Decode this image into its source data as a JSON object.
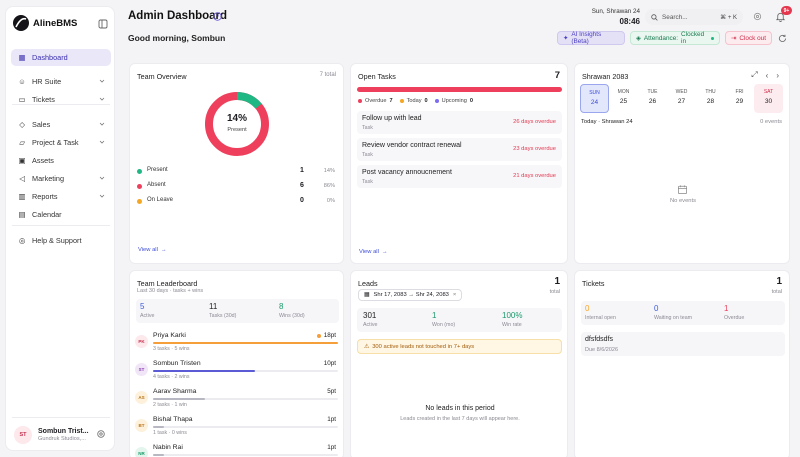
{
  "brand": {
    "name": "AlineBMS"
  },
  "sidebar": {
    "items": [
      {
        "label": "Dashboard",
        "icon": "grid-icon",
        "active": true
      },
      {
        "label": "HR Suite",
        "icon": "users-icon",
        "chevron": true
      },
      {
        "label": "Tickets",
        "icon": "ticket-icon",
        "chevron": true
      },
      {
        "label": "Sales",
        "icon": "tag-icon",
        "chevron": true
      },
      {
        "label": "Project & Task",
        "icon": "folder-icon",
        "chevron": true
      },
      {
        "label": "Assets",
        "icon": "box-icon"
      },
      {
        "label": "Marketing",
        "icon": "megaphone-icon",
        "chevron": true
      },
      {
        "label": "Reports",
        "icon": "chart-icon",
        "chevron": true
      },
      {
        "label": "Calendar",
        "icon": "calendar-icon"
      },
      {
        "label": "Help & Support",
        "icon": "help-icon"
      }
    ],
    "user": {
      "initials": "ST",
      "name": "Sombun Trist...",
      "org": "Gundruk Studios,..."
    }
  },
  "header": {
    "title": "Admin Dashboard",
    "greeting": "Good morning, Sombun",
    "date": "Sun, Shrawan 24",
    "time": "08:46",
    "search_placeholder": "Search...",
    "shortcut": "⌘ + K",
    "notif_count": "9+",
    "ai_label": "AI Insights (Beta)",
    "attendance_label": "Attendance:",
    "attendance_status": "Clocked in",
    "clockout_label": "Clock out"
  },
  "team_overview": {
    "title": "Team Overview",
    "total": "7 total",
    "donut_percent": "14%",
    "donut_label": "Present",
    "present_fraction": 0.14,
    "rows": [
      {
        "label": "Present",
        "count": "1",
        "pct": "14%",
        "color": "#1fb784"
      },
      {
        "label": "Absent",
        "count": "6",
        "pct": "86%",
        "color": "#ee3f5c"
      },
      {
        "label": "On Leave",
        "count": "0",
        "pct": "0%",
        "color": "#f5a623"
      }
    ],
    "view_all": "View all"
  },
  "open_tasks": {
    "title": "Open Tasks",
    "count": "7",
    "legend": [
      {
        "label": "Overdue",
        "count": "7",
        "color": "#ee3f5c"
      },
      {
        "label": "Today",
        "count": "0",
        "color": "#f5a623"
      },
      {
        "label": "Upcoming",
        "count": "0",
        "color": "#7b6cf0"
      }
    ],
    "items": [
      {
        "title": "Follow up with lead",
        "type": "Task",
        "due": "26 days overdue"
      },
      {
        "title": "Review vendor contract renewal",
        "type": "Task",
        "due": "23 days overdue"
      },
      {
        "title": "Post vacancy annoucnement",
        "type": "Task",
        "due": "21 days overdue"
      }
    ],
    "view_all": "View all"
  },
  "calendar": {
    "month": "Shrawan 2083",
    "days": [
      {
        "name": "SUN",
        "num": "24",
        "selected": true
      },
      {
        "name": "MON",
        "num": "25"
      },
      {
        "name": "TUE",
        "num": "26"
      },
      {
        "name": "WED",
        "num": "27"
      },
      {
        "name": "THU",
        "num": "28"
      },
      {
        "name": "FRI",
        "num": "29"
      },
      {
        "name": "SAT",
        "num": "30",
        "weekend": true
      }
    ],
    "today_label": "Today · Shrawan 24",
    "events_count": "0 events",
    "no_events": "No events"
  },
  "leaderboard": {
    "title": "Team Leaderboard",
    "subtitle": "Last 30 days · tasks + wins",
    "stats": [
      {
        "value": "5",
        "label": "Active",
        "color": "#3b5bdb"
      },
      {
        "value": "11",
        "label": "Tasks (30d)",
        "color": "#222"
      },
      {
        "value": "8",
        "label": "Wins (30d)",
        "color": "#1a9b6b"
      }
    ],
    "people": [
      {
        "initials": "PK",
        "name": "Priya Karki",
        "pts": "18pt",
        "meta": "3 tasks · 5 wins",
        "progress": 1.0,
        "bar": "#f59f3a",
        "star": true,
        "avatar_bg": "#fde8ec",
        "avatar_fg": "#c2334f"
      },
      {
        "initials": "ST",
        "name": "Sombun Tristen",
        "pts": "10pt",
        "meta": "4 tasks · 2 wins",
        "progress": 0.55,
        "bar": "#5b5bd6",
        "avatar_bg": "#f1e6f7",
        "avatar_fg": "#8a3fae"
      },
      {
        "initials": "AS",
        "name": "Aarav Sharma",
        "pts": "5pt",
        "meta": "2 tasks · 1 win",
        "progress": 0.28,
        "bar": "#b8b8c2",
        "avatar_bg": "#fdf1dc",
        "avatar_fg": "#b8741a"
      },
      {
        "initials": "BT",
        "name": "Bishal Thapa",
        "pts": "1pt",
        "meta": "1 task · 0 wins",
        "progress": 0.06,
        "bar": "#b8b8c2",
        "avatar_bg": "#fdf1dc",
        "avatar_fg": "#b8741a"
      },
      {
        "initials": "NR",
        "name": "Nabin Rai",
        "pts": "1pt",
        "meta": "",
        "progress": 0.06,
        "bar": "#b8b8c2",
        "avatar_bg": "#e3f5ec",
        "avatar_fg": "#1a9b6b"
      }
    ]
  },
  "leads": {
    "title": "Leads",
    "count": "1",
    "count_label": "total",
    "date_range": "Shr 17, 2083 → Shr 24, 2083",
    "stats": [
      {
        "value": "301",
        "label": "Active",
        "color": "#222"
      },
      {
        "value": "1",
        "label": "Won (mo)",
        "color": "#1a9b6b"
      },
      {
        "value": "100%",
        "label": "Win rate",
        "color": "#1a9b6b"
      }
    ],
    "warning": "300 active leads not touched in 7+ days",
    "empty_title": "No leads in this period",
    "empty_sub": "Leads created in the last 7 days will appear here."
  },
  "tickets": {
    "title": "Tickets",
    "count": "1",
    "count_label": "total",
    "stats": [
      {
        "value": "0",
        "label": "Internal open",
        "color": "#f5a623"
      },
      {
        "value": "0",
        "label": "Waiting on team",
        "color": "#3b5bdb"
      },
      {
        "value": "1",
        "label": "Overdue",
        "color": "#ee3f5c"
      }
    ],
    "item": {
      "title": "dfsfdsdfs",
      "due": "Due 8/6/2026"
    }
  }
}
